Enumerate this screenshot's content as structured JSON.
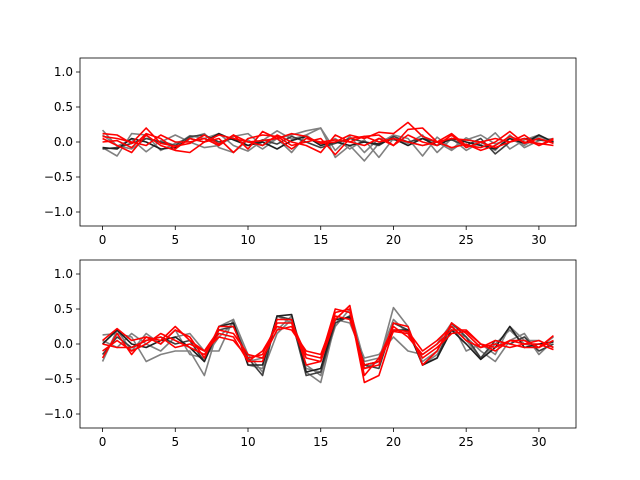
{
  "figure": {
    "background": "#ffffff"
  },
  "chart_data": [
    {
      "type": "line",
      "title": "",
      "xlabel": "",
      "ylabel": "",
      "xlim": [
        -1.55,
        32.55
      ],
      "ylim": [
        -1.2,
        1.2
      ],
      "xticks": [
        0,
        5,
        10,
        15,
        20,
        25,
        30
      ],
      "yticks": [
        -1.0,
        -0.5,
        0.0,
        0.5,
        1.0
      ],
      "xtick_labels": [
        "0",
        "5",
        "10",
        "15",
        "20",
        "25",
        "30"
      ],
      "ytick_labels": [
        "−1.0",
        "−0.5",
        "0.0",
        "0.5",
        "1.0"
      ],
      "grid": false,
      "legend": null,
      "x": [
        0,
        1,
        2,
        3,
        4,
        5,
        6,
        7,
        8,
        9,
        10,
        11,
        12,
        13,
        14,
        15,
        16,
        17,
        18,
        19,
        20,
        21,
        22,
        23,
        24,
        25,
        26,
        27,
        28,
        29,
        30,
        31
      ],
      "series": [
        {
          "color": "#808080",
          "alpha": 1,
          "values": [
            0.17,
            -0.06,
            0.04,
            -0.14,
            0.02,
            -0.05,
            0.09,
            0.05,
            0.12,
            -0.05,
            -0.13,
            0.02,
            0.16,
            0.04,
            0.1,
            0.2,
            -0.22,
            -0.05,
            -0.27,
            -0.02,
            0.1,
            0.05,
            -0.2,
            0.07,
            -0.1,
            0.06,
            -0.04,
            0.13,
            -0.1,
            0.03,
            0.1,
            -0.02
          ]
        },
        {
          "color": "#808080",
          "alpha": 1,
          "values": [
            -0.08,
            -0.2,
            0.12,
            0.1,
            -0.12,
            -0.02,
            0.06,
            0.12,
            -0.08,
            -0.15,
            0.03,
            -0.1,
            0.05,
            0.1,
            0.16,
            0.2,
            -0.12,
            0.08,
            -0.15,
            0.05,
            0.03,
            0.0,
            -0.05,
            0.0,
            -0.12,
            0.03,
            0.1,
            -0.03,
            0.05,
            -0.05,
            0.08,
            0.0
          ]
        },
        {
          "color": "#808080",
          "alpha": 1,
          "values": [
            0.1,
            -0.05,
            -0.1,
            0.05,
            0.0,
            0.1,
            0.0,
            -0.08,
            -0.05,
            0.08,
            0.12,
            -0.05,
            0.05,
            -0.15,
            0.1,
            -0.05,
            0.05,
            -0.1,
            0.03,
            -0.22,
            0.05,
            -0.02,
            0.1,
            -0.15,
            0.05,
            -0.12,
            0.0,
            -0.12,
            0.1,
            -0.08,
            0.02,
            0.05
          ]
        },
        {
          "color": "#404040",
          "alpha": 1,
          "values": [
            -0.1,
            -0.08,
            -0.02,
            0.05,
            0.0,
            -0.05,
            0.08,
            0.1,
            0.0,
            0.05,
            -0.05,
            0.03,
            -0.03,
            0.08,
            0.0,
            -0.08,
            -0.02,
            0.05,
            0.0,
            -0.05,
            0.08,
            0.0,
            0.05,
            0.0,
            0.03,
            -0.05,
            0.05,
            -0.17,
            0.0,
            0.05,
            0.03,
            0.0
          ]
        },
        {
          "color": "#202020",
          "alpha": 1,
          "values": [
            -0.08,
            -0.1,
            0.05,
            0.0,
            -0.1,
            -0.08,
            0.05,
            0.0,
            0.12,
            0.03,
            -0.05,
            0.0,
            -0.1,
            0.02,
            0.08,
            -0.05,
            0.0,
            -0.05,
            0.0,
            -0.03,
            0.05,
            -0.05,
            0.05,
            -0.05,
            0.05,
            0.0,
            -0.05,
            -0.1,
            0.05,
            -0.02,
            0.1,
            0.0
          ]
        },
        {
          "color": "#ff0000",
          "alpha": 1,
          "values": [
            0.12,
            0.1,
            -0.02,
            0.2,
            -0.02,
            -0.06,
            -0.02,
            0.1,
            -0.03,
            0.1,
            0.0,
            0.02,
            0.05,
            0.12,
            0.08,
            -0.02,
            0.0,
            0.1,
            0.05,
            0.14,
            0.12,
            0.28,
            0.08,
            0.0,
            0.12,
            -0.05,
            -0.08,
            0.0,
            0.15,
            -0.02,
            0.05,
            -0.02
          ]
        },
        {
          "color": "#ff0000",
          "alpha": 1,
          "values": [
            0.05,
            -0.05,
            -0.15,
            0.1,
            -0.05,
            -0.12,
            -0.15,
            0.0,
            0.1,
            0.05,
            0.0,
            -0.05,
            0.1,
            0.0,
            -0.05,
            -0.15,
            0.1,
            0.0,
            -0.05,
            0.05,
            -0.05,
            0.18,
            0.2,
            0.0,
            -0.08,
            -0.03,
            -0.12,
            -0.05,
            0.08,
            0.0,
            -0.02,
            -0.05
          ]
        },
        {
          "color": "#ff0000",
          "alpha": 1,
          "values": [
            0.0,
            0.02,
            -0.08,
            0.12,
            0.05,
            -0.1,
            0.05,
            0.0,
            0.05,
            -0.15,
            0.05,
            0.1,
            0.08,
            -0.05,
            0.0,
            0.05,
            -0.18,
            0.05,
            0.08,
            0.1,
            -0.05,
            0.1,
            0.0,
            -0.05,
            0.1,
            -0.08,
            0.0,
            0.05,
            0.0,
            0.1,
            -0.05,
            0.05
          ]
        },
        {
          "color": "#ff0000",
          "alpha": 1,
          "values": [
            0.08,
            0.05,
            0.0,
            -0.05,
            0.1,
            0.0,
            0.0,
            0.05,
            -0.05,
            0.1,
            -0.1,
            0.15,
            0.05,
            -0.1,
            0.05,
            0.0,
            0.03,
            0.0,
            0.08,
            0.0,
            0.05,
            0.0,
            -0.05,
            0.0,
            0.05,
            0.03,
            0.0,
            -0.08,
            0.0,
            0.05,
            -0.05,
            0.03
          ]
        }
      ]
    },
    {
      "type": "line",
      "title": "",
      "xlabel": "",
      "ylabel": "",
      "xlim": [
        -1.55,
        32.55
      ],
      "ylim": [
        -1.2,
        1.2
      ],
      "xticks": [
        0,
        5,
        10,
        15,
        20,
        25,
        30
      ],
      "yticks": [
        -1.0,
        -0.5,
        0.0,
        0.5,
        1.0
      ],
      "xtick_labels": [
        "0",
        "5",
        "10",
        "15",
        "20",
        "25",
        "30"
      ],
      "ytick_labels": [
        "−1.0",
        "−0.5",
        "0.0",
        "0.5",
        "1.0"
      ],
      "grid": false,
      "legend": null,
      "x": [
        0,
        1,
        2,
        3,
        4,
        5,
        6,
        7,
        8,
        9,
        10,
        11,
        12,
        13,
        14,
        15,
        16,
        17,
        18,
        19,
        20,
        21,
        22,
        23,
        24,
        25,
        26,
        27,
        28,
        29,
        30,
        31
      ],
      "series": [
        {
          "color": "#808080",
          "alpha": 1,
          "values": [
            0.13,
            0.15,
            0.1,
            -0.25,
            -0.15,
            -0.1,
            -0.1,
            -0.45,
            0.25,
            0.35,
            -0.15,
            -0.4,
            0.15,
            0.35,
            -0.4,
            -0.55,
            0.3,
            0.4,
            -0.35,
            -0.25,
            0.52,
            0.25,
            -0.3,
            -0.15,
            0.2,
            0.1,
            -0.1,
            -0.25,
            0.05,
            0.15,
            -0.15,
            0.05
          ]
        },
        {
          "color": "#808080",
          "alpha": 1,
          "values": [
            -0.25,
            0.2,
            -0.1,
            0.15,
            0.0,
            0.2,
            -0.15,
            -0.2,
            0.1,
            0.3,
            -0.3,
            -0.35,
            0.4,
            0.3,
            -0.35,
            -0.4,
            0.25,
            0.5,
            -0.25,
            -0.2,
            0.35,
            0.15,
            -0.25,
            -0.1,
            0.25,
            0.05,
            -0.2,
            0.0,
            0.2,
            0.0,
            -0.05,
            0.1
          ]
        },
        {
          "color": "#808080",
          "alpha": 1,
          "values": [
            0.05,
            -0.05,
            0.15,
            0.0,
            -0.1,
            0.1,
            0.15,
            -0.1,
            -0.1,
            0.35,
            -0.25,
            -0.2,
            0.2,
            0.4,
            -0.3,
            -0.45,
            0.35,
            0.3,
            -0.2,
            -0.15,
            0.1,
            -0.1,
            -0.15,
            0.0,
            0.3,
            -0.1,
            0.0,
            -0.15,
            0.25,
            0.05,
            0.05,
            -0.05
          ]
        },
        {
          "color": "#404040",
          "alpha": 1,
          "values": [
            -0.15,
            0.1,
            -0.05,
            0.05,
            0.1,
            0.0,
            0.05,
            -0.25,
            0.2,
            0.25,
            -0.2,
            -0.45,
            0.4,
            0.35,
            -0.45,
            -0.4,
            0.3,
            0.4,
            -0.3,
            -0.35,
            0.3,
            0.2,
            -0.3,
            -0.2,
            0.3,
            0.1,
            -0.2,
            0.05,
            0.0,
            0.1,
            -0.1,
            0.0
          ]
        },
        {
          "color": "#202020",
          "alpha": 1,
          "values": [
            0.0,
            0.2,
            0.0,
            -0.05,
            0.05,
            0.1,
            -0.05,
            -0.25,
            0.25,
            0.3,
            -0.3,
            -0.3,
            0.4,
            0.42,
            -0.4,
            -0.35,
            0.35,
            0.38,
            -0.3,
            -0.25,
            0.2,
            0.2,
            -0.3,
            -0.2,
            0.2,
            0.0,
            -0.22,
            -0.05,
            0.25,
            -0.05,
            0.0,
            0.03
          ]
        },
        {
          "color": "#ff0000",
          "alpha": 1,
          "values": [
            0.05,
            0.22,
            0.05,
            0.1,
            0.05,
            0.25,
            0.05,
            -0.1,
            0.1,
            0.05,
            -0.2,
            -0.15,
            0.3,
            0.3,
            -0.15,
            -0.2,
            0.5,
            0.45,
            -0.35,
            -0.3,
            0.3,
            0.25,
            -0.3,
            -0.1,
            0.3,
            0.15,
            -0.05,
            0.0,
            -0.05,
            0.0,
            0.05,
            -0.05
          ]
        },
        {
          "color": "#ff0000",
          "alpha": 1,
          "values": [
            -0.2,
            0.15,
            -0.15,
            0.1,
            0.0,
            0.2,
            0.1,
            -0.2,
            0.25,
            0.25,
            -0.25,
            -0.25,
            0.35,
            0.35,
            -0.3,
            -0.25,
            0.45,
            0.5,
            -0.55,
            -0.45,
            0.2,
            0.18,
            -0.1,
            0.05,
            0.25,
            0.05,
            -0.05,
            0.05,
            0.0,
            -0.05,
            -0.05,
            0.05
          ]
        },
        {
          "color": "#ff0000",
          "alpha": 1,
          "values": [
            0.0,
            -0.05,
            -0.05,
            0.05,
            0.1,
            -0.05,
            0.0,
            -0.1,
            0.2,
            0.15,
            -0.15,
            -0.2,
            0.2,
            0.25,
            -0.2,
            -0.25,
            0.35,
            0.55,
            -0.45,
            -0.2,
            0.25,
            0.1,
            -0.15,
            0.0,
            0.2,
            0.2,
            0.0,
            -0.1,
            0.05,
            0.0,
            0.0,
            -0.08
          ]
        },
        {
          "color": "#ff0000",
          "alpha": 1,
          "values": [
            -0.1,
            0.05,
            -0.1,
            0.0,
            0.15,
            0.05,
            -0.05,
            -0.15,
            0.15,
            0.1,
            -0.25,
            -0.1,
            0.25,
            0.2,
            -0.1,
            -0.15,
            0.4,
            0.35,
            -0.3,
            -0.25,
            0.18,
            0.15,
            -0.2,
            -0.05,
            0.15,
            0.18,
            0.0,
            -0.05,
            0.05,
            0.05,
            -0.05,
            0.12
          ]
        }
      ]
    }
  ]
}
